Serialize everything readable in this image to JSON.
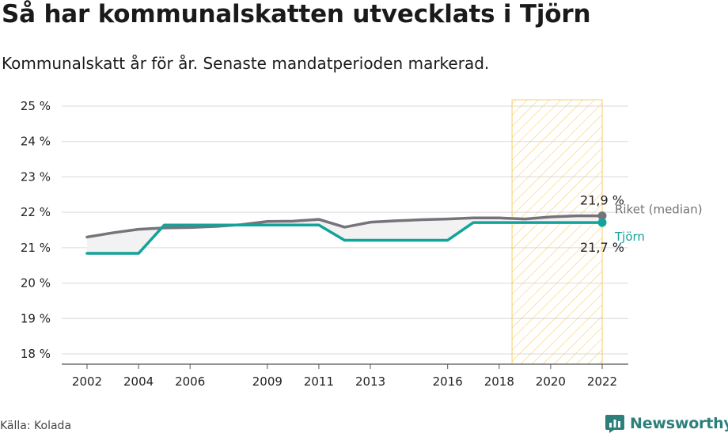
{
  "title": "Så har kommunalskatten utvecklats i Tjörn",
  "subtitle": "Kommunalskatt år för år. Senaste mandatperioden markerad.",
  "source": "Källa: Kolada",
  "brand": "Newsworthy",
  "colors": {
    "riket": "#77737a",
    "tjorn": "#12a39a",
    "highlight": "#f6c143",
    "grid": "#d9d9d9",
    "fill": "#f2f2f2",
    "brand": "#2c7f7a"
  },
  "chart_data": {
    "type": "line",
    "title": "Så har kommunalskatten utvecklats i Tjörn",
    "subtitle": "Kommunalskatt år för år. Senaste mandatperioden markerad.",
    "ylim": [
      18,
      25
    ],
    "yticks": [
      "18 %",
      "19 %",
      "20 %",
      "21 %",
      "22 %",
      "23 %",
      "24 %",
      "25 %"
    ],
    "xticks": [
      2002,
      2004,
      2006,
      2009,
      2011,
      2013,
      2016,
      2018,
      2020,
      2022
    ],
    "xlim": [
      2002,
      2022
    ],
    "highlight_period": [
      2018.5,
      2022
    ],
    "grid": true,
    "series": [
      {
        "name": "Riket (median)",
        "x": [
          2002,
          2003,
          2004,
          2005,
          2006,
          2007,
          2008,
          2009,
          2010,
          2011,
          2012,
          2013,
          2014,
          2015,
          2016,
          2017,
          2018,
          2019,
          2020,
          2021,
          2022
        ],
        "values": [
          21.3,
          21.42,
          21.52,
          21.56,
          21.57,
          21.6,
          21.65,
          21.74,
          21.75,
          21.8,
          21.58,
          21.72,
          21.76,
          21.79,
          21.81,
          21.84,
          21.84,
          21.81,
          21.87,
          21.9,
          21.9
        ],
        "end_label": "21,9 %"
      },
      {
        "name": "Tjörn",
        "x": [
          2002,
          2003,
          2004,
          2005,
          2006,
          2007,
          2008,
          2009,
          2010,
          2011,
          2012,
          2013,
          2014,
          2015,
          2016,
          2017,
          2018,
          2019,
          2020,
          2021,
          2022
        ],
        "values": [
          20.84,
          20.84,
          20.84,
          21.64,
          21.64,
          21.64,
          21.64,
          21.64,
          21.64,
          21.64,
          21.21,
          21.21,
          21.21,
          21.21,
          21.21,
          21.71,
          21.71,
          21.71,
          21.71,
          21.71,
          21.71
        ],
        "end_label": "21,7 %"
      }
    ]
  }
}
